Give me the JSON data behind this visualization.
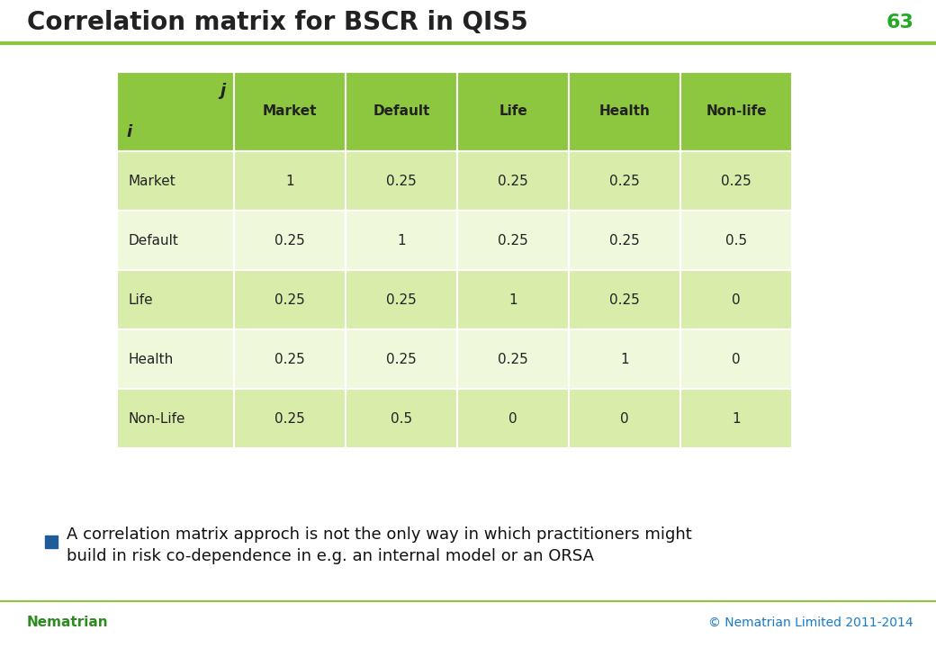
{
  "title": "Correlation matrix for BSCR in QIS5",
  "page_number": "63",
  "header_color": "#8DC63F",
  "header_text_color": "#333333",
  "row_bg_color_light": "#D9EDAB",
  "row_bg_color_white": "#F0F8DC",
  "col_headers": [
    "Market",
    "Default",
    "Life",
    "Health",
    "Non-life"
  ],
  "row_headers": [
    "Market",
    "Default",
    "Life",
    "Health",
    "Non-Life"
  ],
  "matrix": [
    [
      "1",
      "0.25",
      "0.25",
      "0.25",
      "0.25"
    ],
    [
      "0.25",
      "1",
      "0.25",
      "0.25",
      "0.5"
    ],
    [
      "0.25",
      "0.25",
      "1",
      "0.25",
      "0"
    ],
    [
      "0.25",
      "0.25",
      "0.25",
      "1",
      "0"
    ],
    [
      "0.25",
      "0.5",
      "0",
      "0",
      "1"
    ]
  ],
  "bullet_text_line1": "A correlation matrix approch is not the only way in which practitioners might",
  "bullet_text_line2": "build in risk co-dependence in e.g. an internal model or an ORSA",
  "bullet_color": "#1F5C99",
  "footer_left": "Nematrian",
  "footer_right": "© Nematrian Limited 2011-2014",
  "footer_color": "#1B7BC4",
  "title_color": "#222222",
  "top_line_color": "#8DC63F",
  "bottom_line_color": "#8DC63F",
  "nematrian_color": "#2E8B22",
  "page_number_color": "#22AA22"
}
